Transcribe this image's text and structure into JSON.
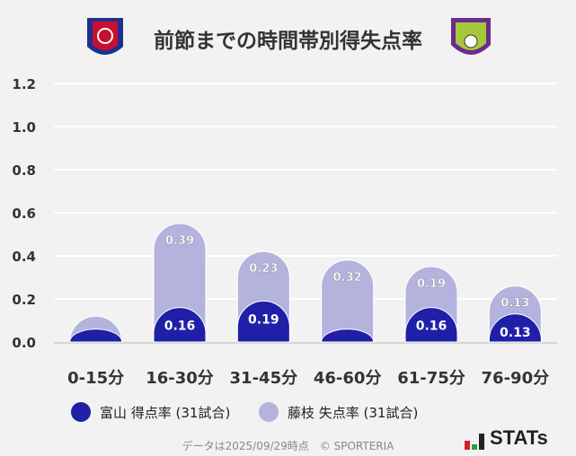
{
  "title": "前節までの時間帯別得失点率",
  "chart_data": {
    "type": "bar",
    "stacked": true,
    "categories": [
      "0-15分",
      "16-30分",
      "31-45分",
      "46-60分",
      "61-75分",
      "76-90分"
    ],
    "series": [
      {
        "name": "富山 得点率 (31試合)",
        "color": "#1f1fa8",
        "values": [
          0.06,
          0.16,
          0.19,
          0.06,
          0.16,
          0.13
        ],
        "labels": [
          "",
          "0.16",
          "0.19",
          "",
          "0.16",
          "0.13"
        ]
      },
      {
        "name": "藤枝 失点率 (31試合)",
        "color": "#b3b3de",
        "values": [
          0.06,
          0.39,
          0.23,
          0.32,
          0.19,
          0.13
        ],
        "labels": [
          "",
          "0.39",
          "0.23",
          "0.32",
          "0.19",
          "0.13"
        ]
      }
    ],
    "ylim": [
      0,
      1.2
    ],
    "yticks": [
      "0.0",
      "0.2",
      "0.4",
      "0.6",
      "0.8",
      "1.0",
      "1.2"
    ],
    "grid": true,
    "legend": "bottom"
  },
  "footer": "データは2025/09/29時点　© SPORTERIA",
  "brand": "STATs",
  "logos": {
    "left": "Kataller Toyama",
    "right": "Fujieda MYFC"
  }
}
